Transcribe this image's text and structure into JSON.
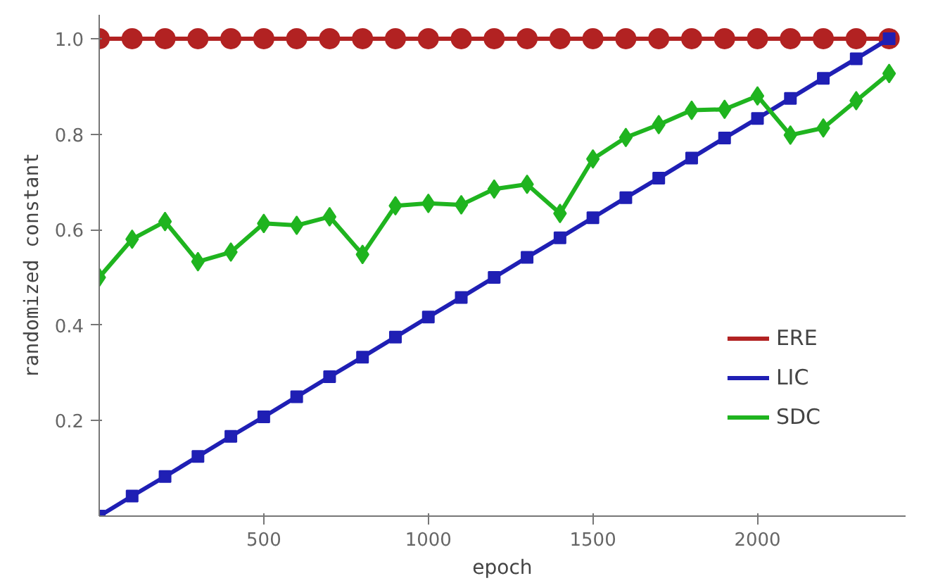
{
  "chart_data": {
    "type": "line",
    "xlabel": "epoch",
    "ylabel": "randomized constant",
    "x": [
      0,
      100,
      200,
      300,
      400,
      500,
      600,
      700,
      800,
      900,
      1000,
      1100,
      1200,
      1300,
      1400,
      1500,
      1600,
      1700,
      1800,
      1900,
      2000,
      2100,
      2200,
      2300,
      2400
    ],
    "series": [
      {
        "name": "ERE",
        "color": "#b22222",
        "marker": "circle",
        "values": [
          1,
          1,
          1,
          1,
          1,
          1,
          1,
          1,
          1,
          1,
          1,
          1,
          1,
          1,
          1,
          1,
          1,
          1,
          1,
          1,
          1,
          1,
          1,
          1,
          1
        ]
      },
      {
        "name": "LIC",
        "color": "#1f1fb4",
        "marker": "square",
        "values": [
          0,
          0.042,
          0.083,
          0.125,
          0.167,
          0.208,
          0.25,
          0.292,
          0.333,
          0.375,
          0.417,
          0.458,
          0.5,
          0.542,
          0.583,
          0.625,
          0.667,
          0.708,
          0.75,
          0.792,
          0.833,
          0.875,
          0.917,
          0.958,
          1
        ]
      },
      {
        "name": "SDC",
        "color": "#1fb41f",
        "marker": "diamond",
        "values": [
          0.5,
          0.58,
          0.617,
          0.533,
          0.553,
          0.613,
          0.609,
          0.627,
          0.548,
          0.65,
          0.655,
          0.652,
          0.685,
          0.695,
          0.634,
          0.748,
          0.793,
          0.82,
          0.85,
          0.852,
          0.88,
          0.798,
          0.813,
          0.87,
          0.927
        ]
      }
    ],
    "xlim": [
      0,
      2450
    ],
    "ylim": [
      0,
      1.05
    ],
    "xticks": [
      500,
      1000,
      1500,
      2000
    ],
    "yticks": [
      0.2,
      0.4,
      0.6,
      0.8,
      {
        "value": 1,
        "label": "1.0"
      }
    ],
    "grid": false,
    "legend": "bottom right",
    "line_style": "solid"
  }
}
